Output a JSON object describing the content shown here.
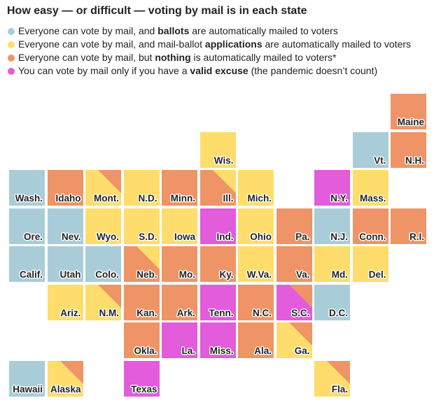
{
  "title": "How easy — or difficult — voting by mail is in each state",
  "colors": {
    "blue": "#a9cdd8",
    "yellow": "#fedd6c",
    "orange": "#ef9466",
    "magenta": "#e25cdc"
  },
  "legend": [
    {
      "color": "blue",
      "before": "Everyone can vote by mail, and ",
      "bold": "ballots",
      "after": " are automatically mailed to voters"
    },
    {
      "color": "yellow",
      "before": "Everyone can vote by mail, and mail-ballot ",
      "bold": "applications",
      "after": " are automatically mailed to voters"
    },
    {
      "color": "orange",
      "before": "Everyone can vote by mail, but ",
      "bold": "nothing",
      "after": " is automatically mailed to voters*"
    },
    {
      "color": "magenta",
      "before": "You can vote by mail only if you have a ",
      "bold": "valid excuse",
      "after": " (the pandemic doesn’t count)"
    }
  ],
  "states": [
    {
      "label": "Maine",
      "color": "orange",
      "stripe": null,
      "col": 10,
      "row": 0
    },
    {
      "label": "Wis.",
      "color": "yellow",
      "stripe": null,
      "col": 5,
      "row": 1
    },
    {
      "label": "Vt.",
      "color": "blue",
      "stripe": null,
      "col": 9,
      "row": 1
    },
    {
      "label": "N.H.",
      "color": "orange",
      "stripe": null,
      "col": 10,
      "row": 1
    },
    {
      "label": "Wash.",
      "color": "blue",
      "stripe": null,
      "col": 0,
      "row": 2
    },
    {
      "label": "Idaho",
      "color": "orange",
      "stripe": null,
      "col": 1,
      "row": 2
    },
    {
      "label": "Mont.",
      "color": "yellow",
      "stripe": "orange",
      "col": 2,
      "row": 2
    },
    {
      "label": "N.D.",
      "color": "yellow",
      "stripe": null,
      "col": 3,
      "row": 2
    },
    {
      "label": "Minn.",
      "color": "orange",
      "stripe": null,
      "col": 4,
      "row": 2
    },
    {
      "label": "Ill.",
      "color": "orange",
      "stripe": "yellow",
      "col": 5,
      "row": 2
    },
    {
      "label": "Mich.",
      "color": "yellow",
      "stripe": null,
      "col": 6,
      "row": 2
    },
    {
      "label": "N.Y.",
      "color": "magenta",
      "stripe": null,
      "col": 8,
      "row": 2
    },
    {
      "label": "Mass.",
      "color": "yellow",
      "stripe": null,
      "col": 9,
      "row": 2
    },
    {
      "label": "Ore.",
      "color": "blue",
      "stripe": null,
      "col": 0,
      "row": 3
    },
    {
      "label": "Nev.",
      "color": "blue",
      "stripe": null,
      "col": 1,
      "row": 3
    },
    {
      "label": "Wyo.",
      "color": "yellow",
      "stripe": null,
      "col": 2,
      "row": 3
    },
    {
      "label": "S.D.",
      "color": "yellow",
      "stripe": null,
      "col": 3,
      "row": 3
    },
    {
      "label": "Iowa",
      "color": "yellow",
      "stripe": null,
      "col": 4,
      "row": 3
    },
    {
      "label": "Ind.",
      "color": "magenta",
      "stripe": null,
      "col": 5,
      "row": 3
    },
    {
      "label": "Ohio",
      "color": "yellow",
      "stripe": null,
      "col": 6,
      "row": 3
    },
    {
      "label": "Pa.",
      "color": "orange",
      "stripe": null,
      "col": 7,
      "row": 3
    },
    {
      "label": "N.J.",
      "color": "blue",
      "stripe": null,
      "col": 8,
      "row": 3
    },
    {
      "label": "Conn.",
      "color": "orange",
      "stripe": null,
      "col": 9,
      "row": 3
    },
    {
      "label": "R.I.",
      "color": "orange",
      "stripe": null,
      "col": 10,
      "row": 3
    },
    {
      "label": "Calif.",
      "color": "blue",
      "stripe": null,
      "col": 0,
      "row": 4
    },
    {
      "label": "Utah",
      "color": "blue",
      "stripe": null,
      "col": 1,
      "row": 4
    },
    {
      "label": "Colo.",
      "color": "blue",
      "stripe": null,
      "col": 2,
      "row": 4
    },
    {
      "label": "Neb.",
      "color": "orange",
      "stripe": "yellow",
      "col": 3,
      "row": 4
    },
    {
      "label": "Mo.",
      "color": "orange",
      "stripe": null,
      "col": 4,
      "row": 4
    },
    {
      "label": "Ky.",
      "color": "orange",
      "stripe": null,
      "col": 5,
      "row": 4
    },
    {
      "label": "W.Va.",
      "color": "yellow",
      "stripe": null,
      "col": 6,
      "row": 4
    },
    {
      "label": "Va.",
      "color": "orange",
      "stripe": null,
      "col": 7,
      "row": 4
    },
    {
      "label": "Md.",
      "color": "yellow",
      "stripe": null,
      "col": 8,
      "row": 4
    },
    {
      "label": "Del.",
      "color": "yellow",
      "stripe": null,
      "col": 9,
      "row": 4
    },
    {
      "label": "Ariz.",
      "color": "yellow",
      "stripe": null,
      "col": 1,
      "row": 5
    },
    {
      "label": "N.M.",
      "color": "yellow",
      "stripe": "orange",
      "col": 2,
      "row": 5
    },
    {
      "label": "Kan.",
      "color": "orange",
      "stripe": null,
      "col": 3,
      "row": 5
    },
    {
      "label": "Ark.",
      "color": "orange",
      "stripe": null,
      "col": 4,
      "row": 5
    },
    {
      "label": "Tenn.",
      "color": "magenta",
      "stripe": null,
      "col": 5,
      "row": 5
    },
    {
      "label": "N.C.",
      "color": "orange",
      "stripe": null,
      "col": 6,
      "row": 5
    },
    {
      "label": "S.C.",
      "color": "magenta",
      "stripe": "orange",
      "col": 7,
      "row": 5
    },
    {
      "label": "D.C.",
      "color": "blue",
      "stripe": null,
      "col": 8,
      "row": 5
    },
    {
      "label": "Okla.",
      "color": "orange",
      "stripe": null,
      "col": 3,
      "row": 6
    },
    {
      "label": "La.",
      "color": "magenta",
      "stripe": null,
      "col": 4,
      "row": 6
    },
    {
      "label": "Miss.",
      "color": "magenta",
      "stripe": null,
      "col": 5,
      "row": 6
    },
    {
      "label": "Ala.",
      "color": "orange",
      "stripe": null,
      "col": 6,
      "row": 6
    },
    {
      "label": "Ga.",
      "color": "yellow",
      "stripe": "orange",
      "col": 7,
      "row": 6
    },
    {
      "label": "Hawaii",
      "color": "blue",
      "stripe": null,
      "col": 0,
      "row": 7
    },
    {
      "label": "Alaska",
      "color": "yellow",
      "stripe": "orange",
      "col": 1,
      "row": 7
    },
    {
      "label": "Texas",
      "color": "magenta",
      "stripe": null,
      "col": 3,
      "row": 7
    },
    {
      "label": "Fla.",
      "color": "yellow",
      "stripe": "orange",
      "col": 8,
      "row": 7
    }
  ]
}
